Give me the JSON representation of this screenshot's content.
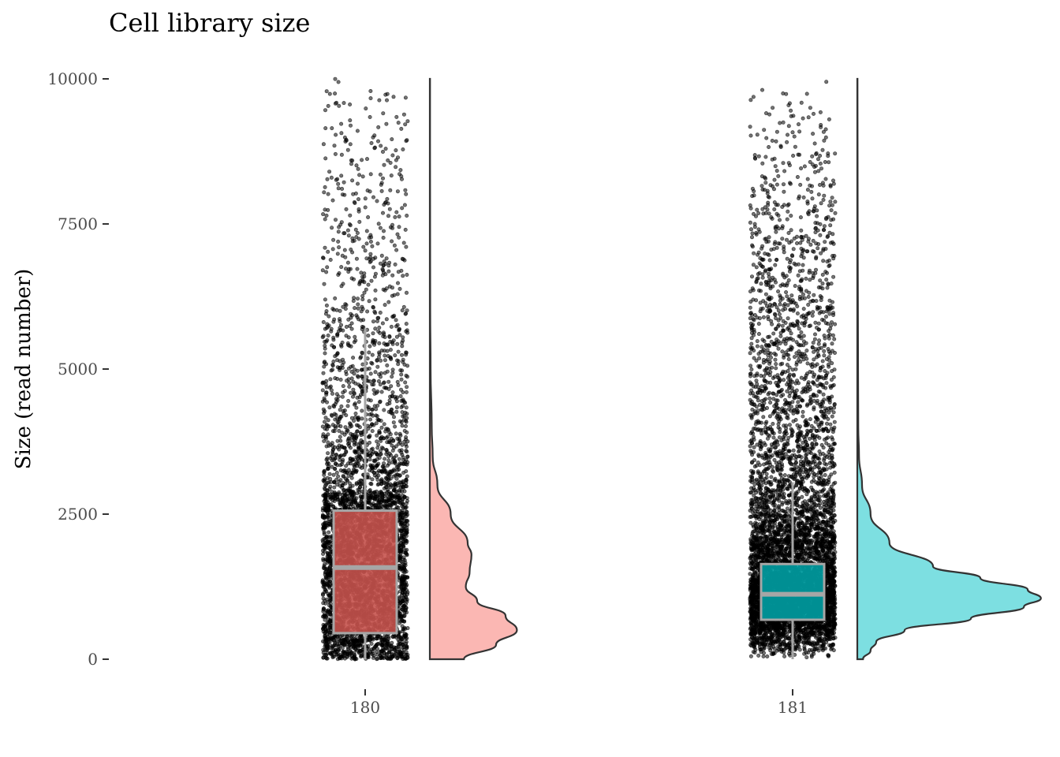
{
  "chart_data": {
    "type": "raincloud",
    "title": "Cell library size",
    "xlabel": "",
    "ylabel": "Size (read number)",
    "ylim": [
      0,
      10000
    ],
    "y_ticks": [
      0,
      2500,
      5000,
      7500,
      10000
    ],
    "y_tick_labels": [
      "0",
      "2500",
      "5000",
      "7500",
      "10000"
    ],
    "grid": false,
    "legend": "none",
    "categories": [
      "180",
      "181"
    ],
    "groups": [
      {
        "category": "180",
        "fill_color": "#f8766d",
        "box_color": "#c5524c",
        "violin_color": "#fbb7b3",
        "box": {
          "lower_whisker": 0,
          "q1": 450,
          "median": 1580,
          "q3": 2560,
          "upper_whisker": 5700
        },
        "density_profile": [
          [
            0,
            0.18
          ],
          [
            250,
            0.35
          ],
          [
            500,
            0.46
          ],
          [
            750,
            0.4
          ],
          [
            1000,
            0.25
          ],
          [
            1250,
            0.19
          ],
          [
            1500,
            0.21
          ],
          [
            1800,
            0.22
          ],
          [
            2000,
            0.2
          ],
          [
            2500,
            0.11
          ],
          [
            3000,
            0.04
          ],
          [
            3500,
            0.015
          ],
          [
            4000,
            0.01
          ],
          [
            5000,
            0.004
          ],
          [
            6000,
            0.002
          ],
          [
            7500,
            0.0015
          ],
          [
            9000,
            0.001
          ],
          [
            10000,
            0.001
          ]
        ]
      },
      {
        "category": "181",
        "fill_color": "#00bfc4",
        "box_color": "#009ea3",
        "violin_color": "#7ddfe1",
        "box": {
          "lower_whisker": 0,
          "q1": 680,
          "median": 1120,
          "q3": 1640,
          "upper_whisker": 3050
        },
        "density_profile": [
          [
            0,
            0.03
          ],
          [
            150,
            0.07
          ],
          [
            300,
            0.1
          ],
          [
            500,
            0.25
          ],
          [
            700,
            0.6
          ],
          [
            900,
            0.88
          ],
          [
            1050,
            0.97
          ],
          [
            1200,
            0.9
          ],
          [
            1400,
            0.65
          ],
          [
            1600,
            0.4
          ],
          [
            2000,
            0.17
          ],
          [
            2500,
            0.07
          ],
          [
            3000,
            0.025
          ],
          [
            3500,
            0.009
          ],
          [
            4000,
            0.005
          ],
          [
            5000,
            0.004
          ],
          [
            7500,
            0.002
          ],
          [
            10000,
            0.001
          ]
        ]
      }
    ],
    "points": "jittered individual cells, capped at 10000"
  }
}
